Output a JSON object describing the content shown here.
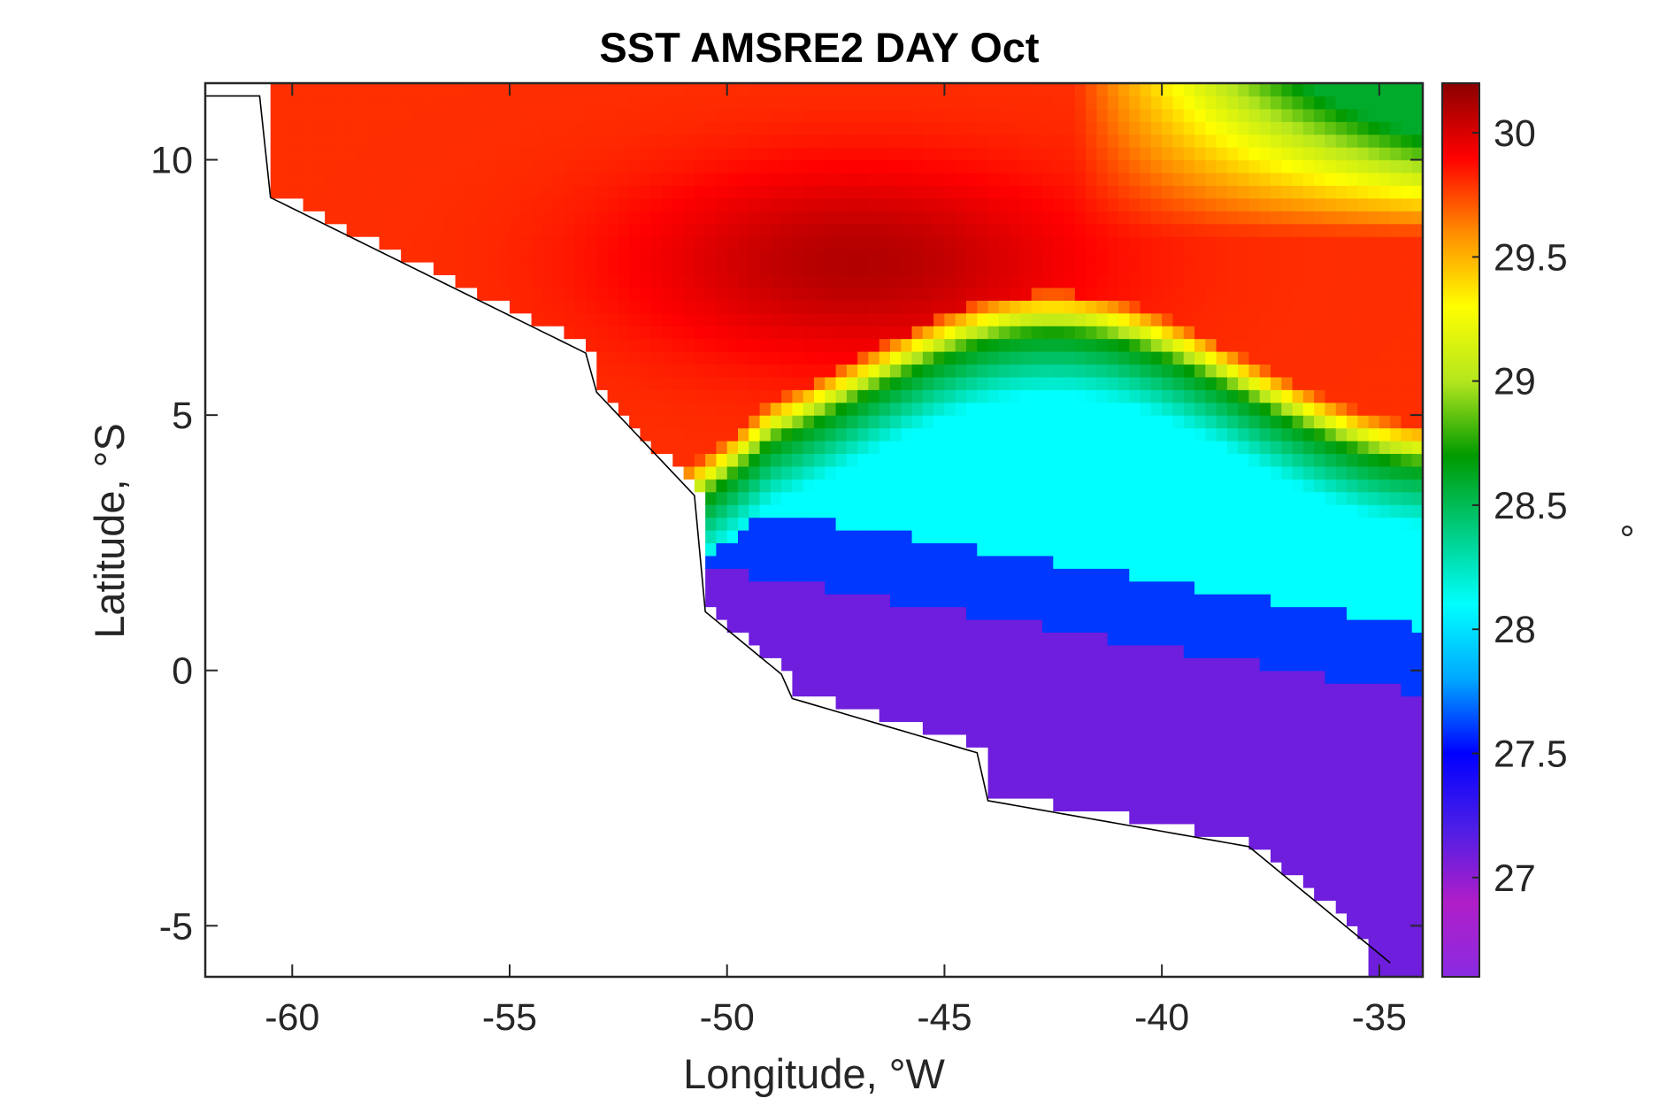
{
  "chart_data": {
    "type": "heatmap",
    "title": "SST AMSRE2 DAY Oct",
    "xlabel": "Longitude, °W",
    "ylabel": "Latitude, °S",
    "xlim": [
      -62,
      -34
    ],
    "ylim": [
      -6,
      11.5
    ],
    "xticks": [
      -60,
      -55,
      -50,
      -45,
      -40,
      -35
    ],
    "yticks": [
      -5,
      0,
      5,
      10
    ],
    "xtick_labels": [
      "-60",
      "-55",
      "-50",
      "-45",
      "-40",
      "-35"
    ],
    "ytick_labels": [
      "-5",
      "0",
      "5",
      "10"
    ],
    "grid": false,
    "colorbar": {
      "label": "°",
      "range": [
        26.6,
        30.2
      ],
      "ticks": [
        27,
        27.5,
        28,
        28.5,
        29,
        29.5,
        30
      ],
      "tick_labels": [
        "27",
        "27.5",
        "28",
        "28.5",
        "29",
        "29.5",
        "30"
      ],
      "colors": [
        "#8a2be2",
        "#b01ec8",
        "#4d1ee6",
        "#0000ff",
        "#00a8ff",
        "#00ffff",
        "#00cc80",
        "#009a00",
        "#b4e61e",
        "#ffff00",
        "#ff8c00",
        "#ff0000",
        "#8b0000"
      ]
    },
    "field_description": {
      "warm_band_north_west": 29.8,
      "warm_core": 30.1,
      "green_front": 28.7,
      "cyan_plume": 28.1,
      "blue_band": 27.6,
      "purple_south_east": 27.1
    }
  }
}
